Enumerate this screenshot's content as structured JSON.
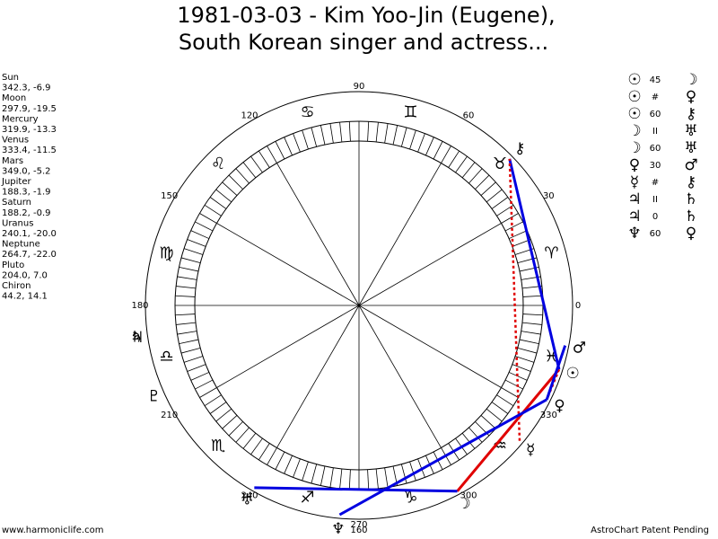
{
  "header": {
    "title_line1": "1981-03-03 - Kim Yoo-Jin (Eugene),",
    "title_line2": "South Korean singer and actress..."
  },
  "planets": [
    {
      "name": "Sun",
      "coords": "342.3, -6.9",
      "glyph": "☉"
    },
    {
      "name": "Moon",
      "coords": "297.9, -19.5",
      "glyph": "☽"
    },
    {
      "name": "Mercury",
      "coords": "319.9, -13.3",
      "glyph": "☿"
    },
    {
      "name": "Venus",
      "coords": "333.4, -11.5",
      "glyph": "♀"
    },
    {
      "name": "Mars",
      "coords": "349.0, -5.2",
      "glyph": "♂"
    },
    {
      "name": "Jupiter",
      "coords": "188.3, -1.9",
      "glyph": "♃"
    },
    {
      "name": "Saturn",
      "coords": "188.2, -0.9",
      "glyph": "♄"
    },
    {
      "name": "Uranus",
      "coords": "240.1, -20.0",
      "glyph": "♅"
    },
    {
      "name": "Neptune",
      "coords": "264.7, -22.0",
      "glyph": "♆"
    },
    {
      "name": "Pluto",
      "coords": "204.0, 7.0",
      "glyph": "♇"
    },
    {
      "name": "Chiron",
      "coords": "44.2, 14.1",
      "glyph": "⚷"
    }
  ],
  "aspects": [
    {
      "p1": "☉",
      "aspect": "45",
      "p2": "☽",
      "color": "#e00000"
    },
    {
      "p1": "☉",
      "aspect": "#",
      "p2": "♀",
      "color": "#e00000",
      "dashed": true
    },
    {
      "p1": "☉",
      "aspect": "60",
      "p2": "⚷",
      "color": "#0000e0"
    },
    {
      "p1": "☽",
      "aspect": "II",
      "p2": "♅"
    },
    {
      "p1": "☽",
      "aspect": "60",
      "p2": "♅",
      "color": "#0000e0"
    },
    {
      "p1": "♀",
      "aspect": "30",
      "p2": "♂",
      "color": "#0000e0"
    },
    {
      "p1": "☿",
      "aspect": "#",
      "p2": "⚷",
      "color": "#e00000",
      "dashed": true
    },
    {
      "p1": "♃",
      "aspect": "II",
      "p2": "♄"
    },
    {
      "p1": "♃",
      "aspect": "0",
      "p2": "♄"
    },
    {
      "p1": "♆",
      "aspect": "60",
      "p2": "♀",
      "color": "#0000e0"
    }
  ],
  "signs": [
    "♈",
    "♉",
    "♊",
    "♋",
    "♌",
    "♍",
    "♎",
    "♏",
    "♐",
    "♑",
    "♒",
    "♓"
  ],
  "degree_labels": [
    "0",
    "30",
    "60",
    "90",
    "120",
    "150",
    "180",
    "210",
    "240",
    "270",
    "300",
    "330"
  ],
  "extra_label": "160",
  "footer": {
    "left": "www.harmoniclife.com",
    "right": "AstroChart Patent Pending"
  }
}
